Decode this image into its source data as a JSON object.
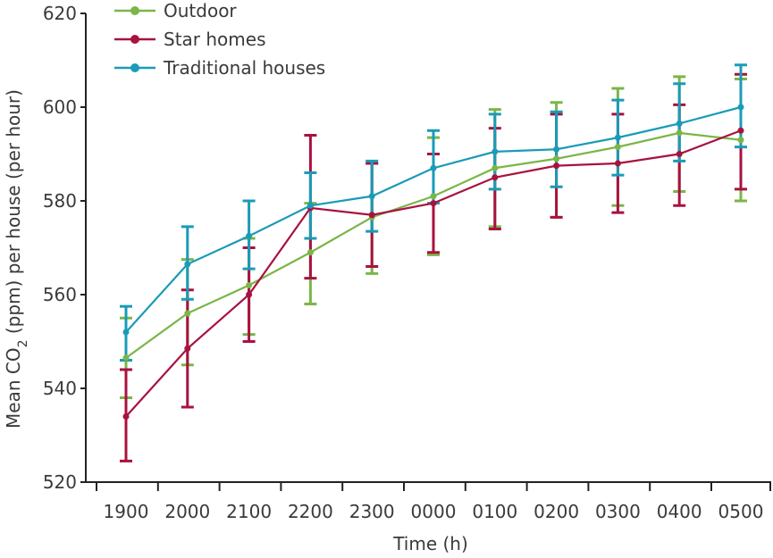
{
  "chart_data": {
    "type": "line",
    "xlabel": "Time (h)",
    "ylabel_main": "Mean CO",
    "ylabel_sub": "2",
    "ylabel_rest": " (ppm) per house (per hour)",
    "ylim": [
      520,
      620
    ],
    "yticks": [
      520,
      540,
      560,
      580,
      600,
      620
    ],
    "categories": [
      "1900",
      "2000",
      "2100",
      "2200",
      "2300",
      "0000",
      "0100",
      "0200",
      "0300",
      "0400",
      "0500"
    ],
    "legend_position": "top-left",
    "grid": false,
    "series": [
      {
        "name": "Outdoor",
        "color": "#7ab648",
        "values": [
          546.5,
          556.0,
          562.0,
          569.0,
          576.5,
          581.0,
          587.0,
          589.0,
          591.5,
          594.5,
          593.0
        ],
        "err_low": [
          538.0,
          545.0,
          551.5,
          558.0,
          564.5,
          568.5,
          574.5,
          576.5,
          579.0,
          582.0,
          580.0
        ],
        "err_high": [
          555.0,
          567.5,
          572.0,
          579.5,
          588.0,
          593.5,
          599.5,
          601.0,
          604.0,
          606.5,
          606.0
        ]
      },
      {
        "name": "Star homes",
        "color": "#a8123f",
        "values": [
          534.0,
          548.5,
          560.0,
          578.5,
          577.0,
          579.5,
          585.0,
          587.5,
          588.0,
          590.0,
          595.0
        ],
        "err_low": [
          524.5,
          536.0,
          550.0,
          563.5,
          566.0,
          569.0,
          574.0,
          576.5,
          577.5,
          579.0,
          582.5
        ],
        "err_high": [
          544.0,
          561.0,
          570.0,
          594.0,
          588.0,
          590.0,
          595.5,
          598.5,
          598.5,
          600.5,
          607.0
        ]
      },
      {
        "name": "Traditional houses",
        "color": "#1a9bb7",
        "values": [
          552.0,
          566.5,
          572.5,
          579.0,
          581.0,
          587.0,
          590.5,
          591.0,
          593.5,
          596.5,
          600.0
        ],
        "err_low": [
          546.0,
          559.0,
          565.5,
          572.0,
          573.5,
          579.5,
          582.5,
          583.0,
          585.5,
          588.5,
          591.5
        ],
        "err_high": [
          557.5,
          574.5,
          580.0,
          586.0,
          588.5,
          595.0,
          598.5,
          599.0,
          601.5,
          605.0,
          609.0
        ]
      }
    ]
  }
}
